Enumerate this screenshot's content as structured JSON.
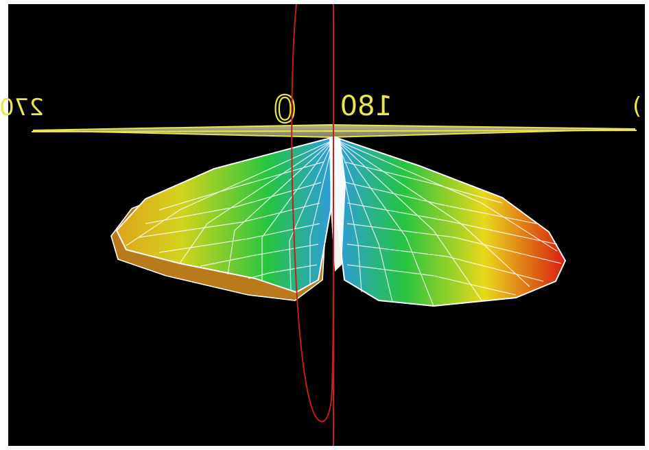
{
  "viewer": {
    "azimuth_labels": {
      "left": "270",
      "center": "0",
      "right": "180",
      "far_right": "("
    }
  },
  "colors": {
    "background": "#000000",
    "label": "#e8e64a",
    "ground_plane": "#9a9870",
    "mesh_lines": "#ffffff",
    "axis_line": "#c41e1e",
    "gradient_high": "#d91c12",
    "gradient_mid": "#e9d81a",
    "gradient_low": "#27c440",
    "gradient_core": "#2f9be0"
  }
}
